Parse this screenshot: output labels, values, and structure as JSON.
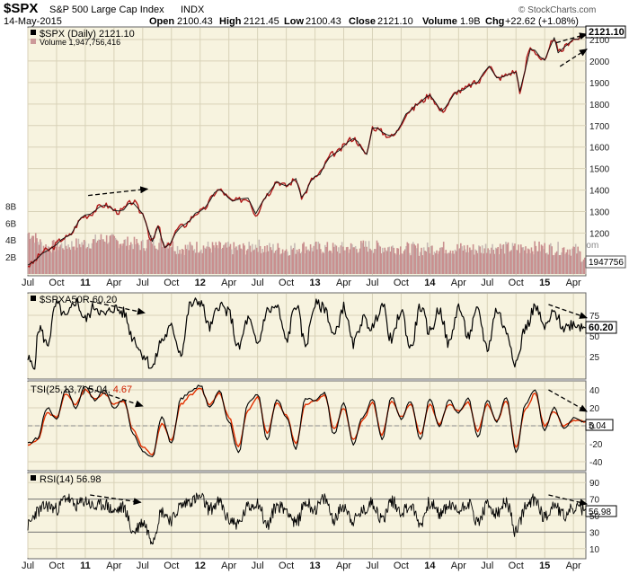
{
  "header": {
    "symbol": "$SPX",
    "name": "S&P 500 Large Cap Index",
    "exchange": "INDX",
    "date": "14-May-2015",
    "open_label": "Open",
    "open": "2100.43",
    "high_label": "High",
    "high": "2121.45",
    "low_label": "Low",
    "low": "2100.43",
    "close_label": "Close",
    "close": "2121.10",
    "volume_label": "Volume",
    "volume": "1.9B",
    "chg_label": "Chg",
    "chg": "+22.62 (+1.08%)",
    "copyright": "© StockCharts.com"
  },
  "x_axis": {
    "labels": [
      {
        "t": "Jul",
        "m": 0,
        "yr": false
      },
      {
        "t": "Oct",
        "m": 3,
        "yr": false
      },
      {
        "t": "11",
        "m": 6,
        "yr": true
      },
      {
        "t": "Apr",
        "m": 9,
        "yr": false
      },
      {
        "t": "Jul",
        "m": 12,
        "yr": false
      },
      {
        "t": "Oct",
        "m": 15,
        "yr": false
      },
      {
        "t": "12",
        "m": 18,
        "yr": true
      },
      {
        "t": "Apr",
        "m": 21,
        "yr": false
      },
      {
        "t": "Jul",
        "m": 24,
        "yr": false
      },
      {
        "t": "Oct",
        "m": 27,
        "yr": false
      },
      {
        "t": "13",
        "m": 30,
        "yr": true
      },
      {
        "t": "Apr",
        "m": 33,
        "yr": false
      },
      {
        "t": "Jul",
        "m": 36,
        "yr": false
      },
      {
        "t": "Oct",
        "m": 39,
        "yr": false
      },
      {
        "t": "14",
        "m": 42,
        "yr": true
      },
      {
        "t": "Apr",
        "m": 45,
        "yr": false
      },
      {
        "t": "Jul",
        "m": 48,
        "yr": false
      },
      {
        "t": "Oct",
        "m": 51,
        "yr": false
      },
      {
        "t": "15",
        "m": 54,
        "yr": true
      },
      {
        "t": "Apr",
        "m": 57,
        "yr": false
      }
    ]
  },
  "chart_data": [
    {
      "type": "line",
      "legend": "$SPX (Daily) 2121.10",
      "volume_legend": "Volume 1,947,756,416",
      "last_value_label": "2121.10",
      "volume_last_label": "1947756",
      "y_ticks": [
        1200,
        1300,
        1400,
        1500,
        1600,
        1700,
        1800,
        1900,
        2000,
        2100
      ],
      "volume_ticks": [
        "2B",
        "4B",
        "6B",
        "8B"
      ],
      "ylim": [
        1010,
        2150
      ],
      "x_months": [
        0,
        2,
        4,
        6,
        8,
        9.5,
        11,
        12,
        13,
        13.6,
        14.3,
        16,
        18,
        20,
        21.4,
        23,
        23.8,
        25,
        26,
        27,
        28,
        28.6,
        30,
        32,
        34,
        35.4,
        36,
        38,
        40,
        41,
        42,
        43.2,
        45,
        47,
        48.2,
        49,
        51,
        51.4,
        52.5,
        54,
        55,
        55.4,
        57,
        58.3
      ],
      "values": [
        1050,
        1120,
        1180,
        1280,
        1330,
        1300,
        1345,
        1290,
        1160,
        1230,
        1130,
        1230,
        1300,
        1400,
        1350,
        1360,
        1290,
        1380,
        1440,
        1420,
        1450,
        1370,
        1460,
        1570,
        1640,
        1570,
        1690,
        1650,
        1770,
        1810,
        1840,
        1770,
        1860,
        1900,
        1980,
        1920,
        1950,
        1862,
        2060,
        2000,
        2110,
        2040,
        2100,
        2121.1
      ],
      "volume_values_B": [
        4.8,
        3.2,
        3.4,
        3.6,
        4.2,
        3.8,
        3.6,
        3.4,
        4.0,
        3.6,
        3.8,
        3.0,
        3.2,
        3.1,
        3.0,
        3.0,
        3.4,
        3.0,
        3.0,
        2.9,
        3.0,
        3.2,
        3.1,
        3.0,
        3.1,
        3.3,
        3.2,
        3.1,
        3.0,
        2.9,
        3.0,
        3.1,
        3.0,
        2.9,
        3.2,
        3.1,
        3.0,
        3.0,
        3.1,
        3.1,
        3.0,
        3.0,
        2.9,
        1.9
      ]
    },
    {
      "type": "line",
      "legend": "$SPXA50R 60.20",
      "last_value_label": "60.20",
      "y_ticks": [
        25,
        50,
        75
      ],
      "ylim": [
        0,
        100
      ],
      "x_months": [
        0,
        0.6,
        1.2,
        2,
        3,
        4,
        5,
        6,
        7,
        8,
        9,
        10,
        11,
        12,
        13,
        14,
        15,
        16,
        17,
        18,
        19,
        20,
        21,
        22,
        23,
        24,
        25,
        26,
        27,
        28,
        29,
        30,
        31,
        32,
        33,
        34,
        35,
        36,
        37,
        38,
        39,
        40,
        41,
        42,
        43,
        44,
        45,
        46,
        47,
        48,
        49,
        50,
        51,
        52,
        53,
        54,
        55,
        56,
        57,
        58.3
      ],
      "values": [
        22,
        12,
        60,
        40,
        88,
        72,
        92,
        70,
        86,
        75,
        84,
        78,
        48,
        28,
        12,
        45,
        60,
        30,
        88,
        92,
        60,
        88,
        78,
        35,
        70,
        40,
        80,
        85,
        45,
        88,
        40,
        88,
        84,
        50,
        85,
        40,
        70,
        60,
        88,
        45,
        80,
        35,
        85,
        55,
        82,
        40,
        85,
        50,
        80,
        35,
        82,
        55,
        18,
        60,
        85,
        60,
        78,
        60,
        65,
        60.2
      ]
    },
    {
      "type": "line",
      "legend": "TSI(25,13,7) 5.04, 4.67",
      "tsi_value": "5.04",
      "signal_value": "4.67",
      "last_value_label": "5.04",
      "y_ticks": [
        -40,
        -20,
        0,
        20,
        40
      ],
      "ylim": [
        -48,
        48
      ],
      "x_months": [
        0,
        1,
        2,
        3,
        4,
        5,
        6,
        7,
        8,
        9,
        10,
        11,
        12,
        13,
        14,
        15,
        16,
        17,
        18,
        19,
        20,
        21,
        22,
        23,
        24,
        25,
        26,
        27,
        28,
        29,
        30,
        31,
        32,
        33,
        34,
        35,
        36,
        37,
        38,
        39,
        40,
        41,
        42,
        43,
        44,
        45,
        46,
        47,
        48,
        49,
        50,
        51,
        52,
        53,
        54,
        55,
        56,
        57,
        58.3
      ],
      "values": [
        -20,
        -14,
        20,
        8,
        42,
        20,
        45,
        28,
        40,
        20,
        30,
        -10,
        -28,
        -35,
        10,
        -20,
        30,
        38,
        45,
        20,
        40,
        5,
        -30,
        25,
        35,
        -15,
        30,
        10,
        -25,
        30,
        28,
        36,
        -10,
        25,
        -20,
        10,
        30,
        -15,
        32,
        8,
        28,
        -15,
        30,
        0,
        28,
        15,
        30,
        -12,
        28,
        5,
        32,
        -30,
        25,
        40,
        -5,
        20,
        -2,
        8,
        5.04
      ],
      "signal_values": [
        -22,
        -16,
        14,
        10,
        36,
        24,
        40,
        30,
        36,
        24,
        28,
        -4,
        -24,
        -32,
        2,
        -16,
        24,
        34,
        42,
        24,
        36,
        10,
        -24,
        18,
        32,
        -8,
        26,
        12,
        -20,
        24,
        28,
        34,
        -4,
        20,
        -16,
        6,
        26,
        -10,
        28,
        10,
        24,
        -10,
        24,
        2,
        24,
        16,
        26,
        -6,
        24,
        6,
        28,
        -24,
        18,
        36,
        0,
        16,
        0,
        6,
        4.67
      ]
    },
    {
      "type": "line",
      "legend": "RSI(14) 56.98",
      "last_value_label": "56.98",
      "y_ticks": [
        10,
        30,
        50,
        70,
        90
      ],
      "ylim": [
        0,
        100
      ],
      "x_months": [
        0,
        1,
        2,
        3,
        4,
        5,
        6,
        7,
        8,
        9,
        10,
        11,
        12,
        13,
        14,
        15,
        16,
        17,
        18,
        19,
        20,
        21,
        22,
        23,
        24,
        25,
        26,
        27,
        28,
        29,
        30,
        31,
        32,
        33,
        34,
        35,
        36,
        37,
        38,
        39,
        40,
        41,
        42,
        43,
        44,
        45,
        46,
        47,
        48,
        49,
        50,
        51,
        52,
        53,
        54,
        55,
        56,
        57,
        58.3
      ],
      "values": [
        38,
        55,
        62,
        58,
        72,
        62,
        68,
        60,
        64,
        55,
        60,
        30,
        42,
        22,
        55,
        45,
        62,
        68,
        72,
        58,
        66,
        45,
        40,
        60,
        66,
        38,
        62,
        58,
        40,
        66,
        58,
        70,
        46,
        62,
        44,
        55,
        66,
        45,
        68,
        55,
        62,
        40,
        66,
        52,
        62,
        56,
        66,
        42,
        62,
        52,
        66,
        30,
        60,
        70,
        48,
        64,
        50,
        58,
        56.98
      ]
    }
  ]
}
